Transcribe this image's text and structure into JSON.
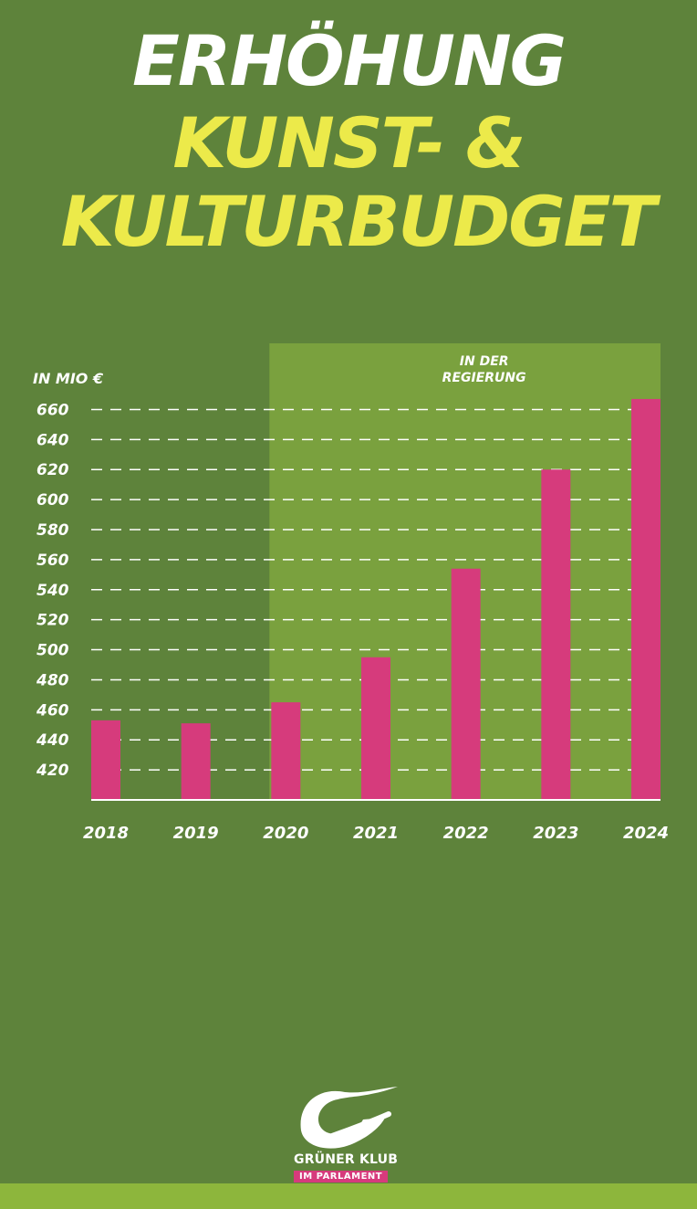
{
  "title": {
    "line1": "ERHÖHUNG",
    "line2": "KUNST- &",
    "line3": "KULTURBUDGET"
  },
  "chart_data": {
    "type": "bar",
    "ylabel": "IN MIO €",
    "categories": [
      "2018",
      "2019",
      "2020",
      "2021",
      "2022",
      "2023",
      "2024"
    ],
    "values": [
      453,
      451,
      465,
      495,
      554,
      620,
      667
    ],
    "yticks": [
      420,
      440,
      460,
      480,
      500,
      520,
      540,
      560,
      580,
      600,
      620,
      640,
      660
    ],
    "ylim": [
      400,
      670
    ],
    "grid": true,
    "highlight": {
      "label_line1": "IN DER",
      "label_line2": "REGIERUNG",
      "from_category": "2020",
      "to_category": "2024"
    },
    "colors": {
      "bar": "#d63b7c",
      "highlight": "#7aa13e",
      "gridline": "#ffffff"
    }
  },
  "logo": {
    "line1": "GRÜNER KLUB",
    "line2": "IM PARLAMENT"
  },
  "colors": {
    "background": "#5e833b",
    "title_white": "#ffffff",
    "title_yellow": "#ecea4a",
    "bottom_band": "#8db63c"
  }
}
